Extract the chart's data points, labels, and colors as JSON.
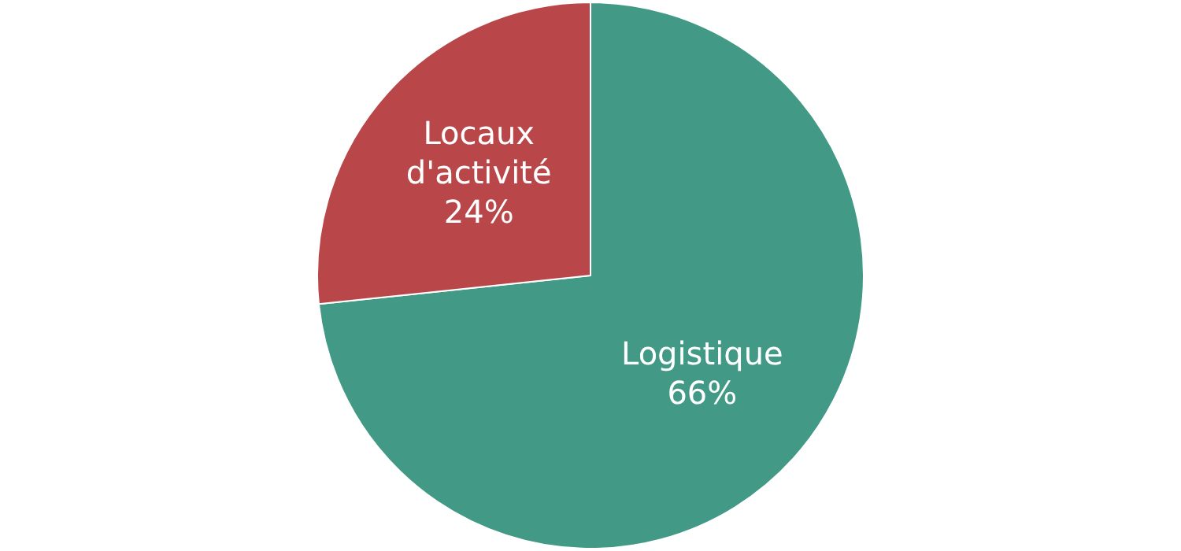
{
  "chart_data": {
    "type": "pie",
    "categories": [
      "Logistique",
      "Locaux d'activité"
    ],
    "values": [
      66,
      24
    ],
    "value_labels": [
      "66%",
      "24%"
    ],
    "colors": [
      "#429a86",
      "#b9474a"
    ],
    "legend": false
  }
}
